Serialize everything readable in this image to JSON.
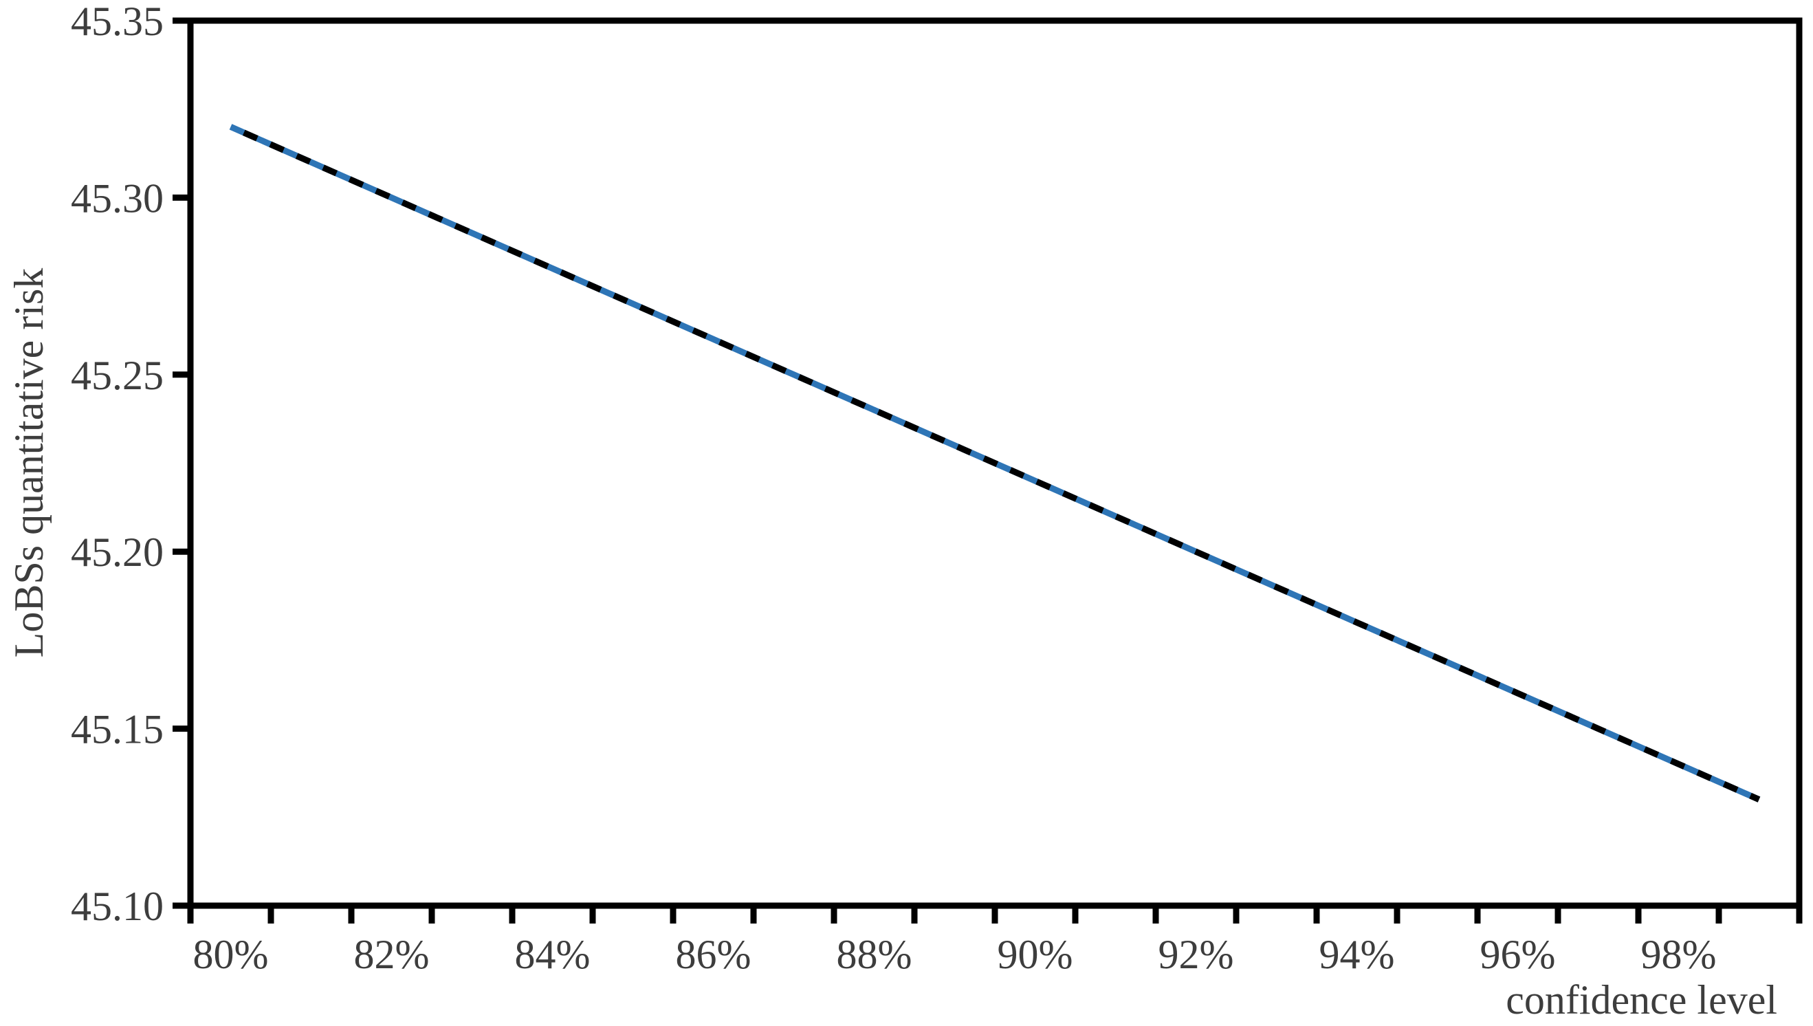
{
  "figure": {
    "background": "#ffffff",
    "axis_color": "#000000",
    "text_color": "#3d3d3d"
  },
  "chart_data": {
    "type": "line",
    "title": "",
    "xlabel": "confidence level",
    "ylabel": "LoBSs quantitative risk",
    "x_categories": [
      "80%",
      "81%",
      "82%",
      "83%",
      "84%",
      "85%",
      "86%",
      "87%",
      "88%",
      "89%",
      "90%",
      "91%",
      "92%",
      "93%",
      "94%",
      "95%",
      "96%",
      "97%",
      "98%",
      "99%"
    ],
    "x_tick_labels": [
      "80%",
      "82%",
      "84%",
      "86%",
      "88%",
      "90%",
      "92%",
      "94%",
      "96%",
      "98%"
    ],
    "y_tick_labels": [
      "45.10",
      "45.15",
      "45.20",
      "45.25",
      "45.30",
      "45.35"
    ],
    "ylim": [
      45.1,
      45.35
    ],
    "y_tick_step": 0.05,
    "grid": false,
    "legend": "none",
    "series": [
      {
        "name": "LoBSs quantitative risk (solid blue line)",
        "color": "#2E75B6",
        "dash": "solid",
        "values": [
          45.32,
          45.31,
          45.3,
          45.29,
          45.28,
          45.27,
          45.26,
          45.25,
          45.24,
          45.23,
          45.22,
          45.21,
          45.2,
          45.19,
          45.18,
          45.17,
          45.16,
          45.15,
          45.14,
          45.13
        ]
      },
      {
        "name": "LoBSs quantitative risk (black dashed overlay)",
        "color": "#000000",
        "dash": "dashed",
        "values": [
          45.32,
          45.31,
          45.3,
          45.29,
          45.28,
          45.27,
          45.26,
          45.25,
          45.24,
          45.23,
          45.22,
          45.21,
          45.2,
          45.19,
          45.18,
          45.17,
          45.16,
          45.15,
          45.14,
          45.13
        ]
      }
    ]
  }
}
